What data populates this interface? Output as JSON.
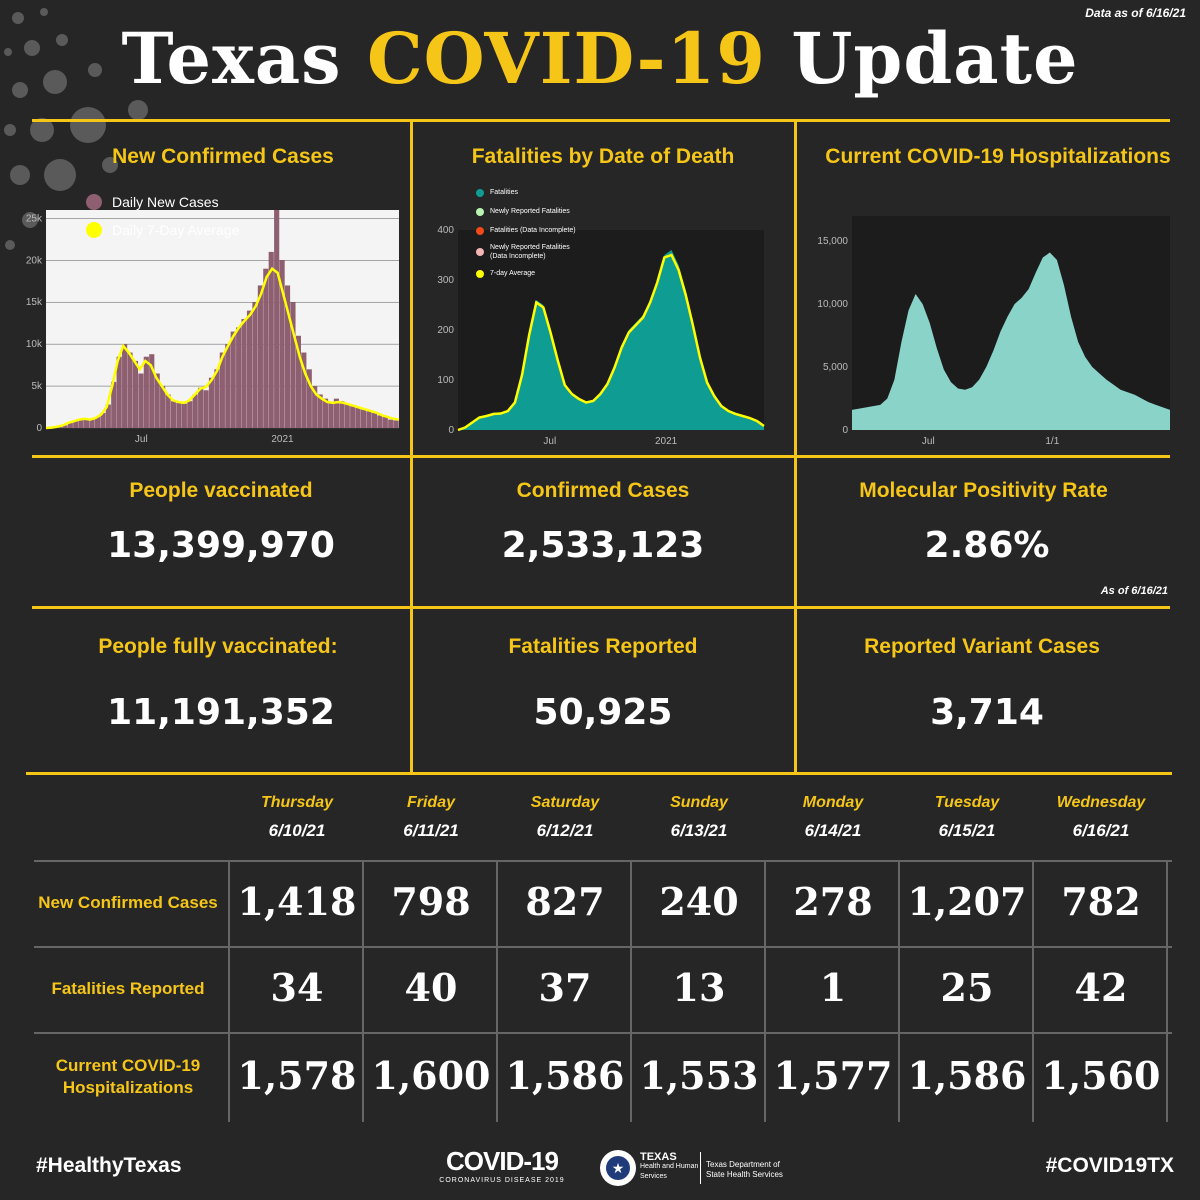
{
  "header": {
    "data_as_of": "Data as of 6/16/21",
    "title_part1": "Texas",
    "title_part2": "COVID-19",
    "title_part3": "Update"
  },
  "colors": {
    "background": "#262626",
    "accent": "#f5c518",
    "cases_bar": "#8e5f70",
    "fatalities_area": "#0f9c93",
    "hosp_area": "#8ad3c8"
  },
  "chart_data": [
    {
      "type": "bar",
      "title": "New Confirmed Cases",
      "legend": [
        "Daily New Cases",
        "Daily 7-Day Average"
      ],
      "x_ticks": [
        "Jul",
        "2021"
      ],
      "y_ticks": [
        "0",
        "5k",
        "10k",
        "15k",
        "20k",
        "25k"
      ],
      "ylim": [
        0,
        26000
      ],
      "series": [
        {
          "name": "Daily New Cases",
          "values": [
            0,
            50,
            150,
            300,
            600,
            800,
            1000,
            1100,
            1000,
            1300,
            1800,
            2800,
            5500,
            8500,
            10000,
            9000,
            8000,
            6500,
            8500,
            8800,
            6500,
            5000,
            4000,
            3200,
            3000,
            2900,
            3200,
            4000,
            4800,
            4500,
            6000,
            7000,
            9000,
            10000,
            11500,
            12000,
            13000,
            14000,
            15000,
            17000,
            19000,
            21000,
            26000,
            20000,
            17000,
            15000,
            11000,
            9000,
            7000,
            5000,
            4000,
            3500,
            3000,
            3500,
            3200,
            2800,
            2600,
            2400,
            2200,
            2000,
            1800,
            1500,
            1300,
            1000,
            900
          ]
        },
        {
          "name": "Daily 7-Day Average",
          "values": [
            0,
            50,
            150,
            300,
            600,
            800,
            1000,
            1100,
            1000,
            1200,
            1600,
            2500,
            5000,
            8000,
            9800,
            9000,
            8000,
            7000,
            8000,
            7500,
            6000,
            5000,
            4000,
            3300,
            3100,
            3000,
            3300,
            4000,
            4700,
            4900,
            5700,
            6800,
            8500,
            9800,
            11000,
            12000,
            12800,
            13500,
            14500,
            16000,
            18000,
            19000,
            18500,
            16000,
            13500,
            11000,
            8500,
            6500,
            5000,
            4000,
            3500,
            3100,
            3000,
            3100,
            3000,
            2800,
            2600,
            2400,
            2200,
            2000,
            1800,
            1500,
            1300,
            1100,
            1000
          ]
        }
      ]
    },
    {
      "type": "area",
      "title": "Fatalities by Date of Death",
      "legend": [
        "Fatalities",
        "Newly Reported Fatalities",
        "Fatalities (Data Incomplete)",
        "Newly Reported Fatalities (Data Incomplete)",
        "7-day Average"
      ],
      "x_ticks": [
        "Jul",
        "2021"
      ],
      "y_ticks": [
        "0",
        "100",
        "200",
        "300",
        "400"
      ],
      "ylim": [
        0,
        400
      ],
      "series": [
        {
          "name": "Fatalities",
          "values": [
            0,
            5,
            15,
            25,
            30,
            35,
            35,
            40,
            60,
            120,
            200,
            260,
            250,
            200,
            140,
            90,
            75,
            65,
            55,
            60,
            75,
            95,
            130,
            170,
            200,
            215,
            230,
            260,
            300,
            350,
            360,
            330,
            280,
            220,
            150,
            100,
            70,
            50,
            40,
            35,
            30,
            25,
            20,
            10
          ]
        },
        {
          "name": "7-day Average",
          "values": [
            0,
            5,
            15,
            25,
            28,
            32,
            33,
            38,
            55,
            110,
            190,
            255,
            245,
            195,
            140,
            90,
            72,
            62,
            55,
            58,
            72,
            92,
            125,
            165,
            195,
            210,
            225,
            255,
            295,
            345,
            350,
            320,
            270,
            210,
            145,
            95,
            68,
            48,
            38,
            32,
            28,
            24,
            18,
            8
          ]
        }
      ]
    },
    {
      "type": "area",
      "title": "Current COVID-19 Hospitalizations",
      "x_ticks": [
        "Jul",
        "1/1"
      ],
      "y_ticks": [
        "0",
        "5,000",
        "10,000",
        "15,000"
      ],
      "ylim": [
        0,
        17000
      ],
      "series": [
        {
          "name": "Hospitalizations",
          "values": [
            1600,
            1700,
            1800,
            1900,
            2000,
            2500,
            4000,
            7000,
            9500,
            10800,
            10000,
            8500,
            6500,
            4800,
            3800,
            3300,
            3200,
            3400,
            4000,
            5000,
            6300,
            7800,
            9000,
            10000,
            10500,
            11200,
            12500,
            13700,
            14100,
            13500,
            11500,
            9000,
            7000,
            5800,
            5000,
            4500,
            4000,
            3600,
            3200,
            3000,
            2800,
            2500,
            2200,
            2000,
            1800,
            1600
          ]
        }
      ]
    }
  ],
  "stats": {
    "vaccinated_label": "People vaccinated",
    "vaccinated_value": "13,399,970",
    "confirmed_label": "Confirmed Cases",
    "confirmed_value": "2,533,123",
    "positivity_label": "Molecular Positivity Rate",
    "positivity_value": "2.86%",
    "positivity_asof": "As of 6/16/21",
    "fully_label": "People fully vaccinated:",
    "fully_value": "11,191,352",
    "fatalities_label": "Fatalities Reported",
    "fatalities_value": "50,925",
    "variant_label": "Reported Variant Cases",
    "variant_value": "3,714"
  },
  "table": {
    "days": [
      {
        "day": "Thursday",
        "date": "6/10/21"
      },
      {
        "day": "Friday",
        "date": "6/11/21"
      },
      {
        "day": "Saturday",
        "date": "6/12/21"
      },
      {
        "day": "Sunday",
        "date": "6/13/21"
      },
      {
        "day": "Monday",
        "date": "6/14/21"
      },
      {
        "day": "Tuesday",
        "date": "6/15/21"
      },
      {
        "day": "Wednesday",
        "date": "6/16/21"
      }
    ],
    "rows": [
      {
        "label": "New Confirmed Cases",
        "values": [
          "1,418",
          "798",
          "827",
          "240",
          "278",
          "1,207",
          "782"
        ]
      },
      {
        "label": "Fatalities Reported",
        "values": [
          "34",
          "40",
          "37",
          "13",
          "1",
          "25",
          "42"
        ]
      },
      {
        "label": "Current COVID-19 Hospitalizations",
        "values": [
          "1,578",
          "1,600",
          "1,586",
          "1,553",
          "1,577",
          "1,586",
          "1,560"
        ]
      }
    ]
  },
  "footer": {
    "left_tag": "#HealthyTexas",
    "right_tag": "#COVID19TX",
    "logo_main": "COVID-19",
    "logo_sub": "CORONAVIRUS DISEASE 2019",
    "hhs_name": "TEXAS",
    "hhs_sub": "Health and Human Services",
    "dshs_name": "Texas Department of State Health Services"
  }
}
